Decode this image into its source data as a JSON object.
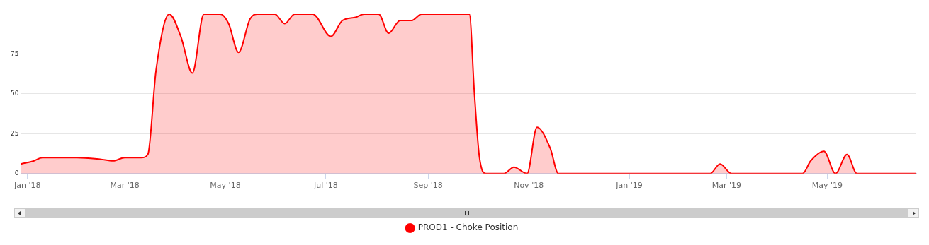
{
  "chart_data": {
    "type": "area",
    "xlim": [
      "2017-12-28",
      "2019-06-24"
    ],
    "xticks": [
      {
        "value": "2018-01-01",
        "label": "Jan '18"
      },
      {
        "value": "2018-03-01",
        "label": "Mar '18"
      },
      {
        "value": "2018-05-01",
        "label": "May '18"
      },
      {
        "value": "2018-07-01",
        "label": "Jul '18"
      },
      {
        "value": "2018-09-01",
        "label": "Sep '18"
      },
      {
        "value": "2018-11-01",
        "label": "Nov '18"
      },
      {
        "value": "2019-01-01",
        "label": "Jan '19"
      },
      {
        "value": "2019-03-01",
        "label": "Mar '19"
      },
      {
        "value": "2019-05-01",
        "label": "May '19"
      }
    ],
    "ylim": [
      0,
      100
    ],
    "yticks": [
      0,
      25,
      50,
      75
    ],
    "grid": "y",
    "legend": "bottom",
    "marker": "none",
    "line_style": "solid",
    "x": [
      "2017-12-28",
      "2018-01-05",
      "2018-01-10",
      "2018-01-18",
      "2018-01-31",
      "2018-02-14",
      "2018-02-22",
      "2018-03-01",
      "2018-03-11",
      "2018-03-15",
      "2018-03-20",
      "2018-03-28",
      "2018-04-04",
      "2018-04-11",
      "2018-04-18",
      "2018-04-28",
      "2018-05-03",
      "2018-05-09",
      "2018-05-16",
      "2018-05-20",
      "2018-05-31",
      "2018-06-06",
      "2018-06-12",
      "2018-06-23",
      "2018-07-04",
      "2018-07-11",
      "2018-07-19",
      "2018-07-24",
      "2018-08-02",
      "2018-08-08",
      "2018-08-15",
      "2018-08-22",
      "2018-08-28",
      "2018-09-26",
      "2018-09-29",
      "2018-10-02",
      "2018-10-06",
      "2018-10-17",
      "2018-10-23",
      "2018-10-31",
      "2018-11-06",
      "2018-11-14",
      "2018-11-19",
      "2019-02-19",
      "2019-02-25",
      "2019-03-04",
      "2019-04-16",
      "2019-04-21",
      "2019-04-29",
      "2019-05-06",
      "2019-05-13",
      "2019-05-19",
      "2019-06-24"
    ],
    "series": [
      {
        "name": "PROD1 - Choke Position",
        "color": "#ff0000",
        "values": [
          6,
          8,
          10,
          10,
          10,
          9,
          8,
          10,
          10,
          12,
          65,
          100,
          86,
          63,
          100,
          100,
          94,
          76,
          97,
          100,
          100,
          94,
          100,
          100,
          86,
          96,
          98,
          100,
          100,
          88,
          96,
          96,
          100,
          100,
          51,
          11,
          0,
          0,
          4,
          0,
          29,
          16,
          0,
          0,
          6,
          0,
          0,
          8,
          14,
          0,
          12,
          0,
          0
        ]
      }
    ]
  }
}
